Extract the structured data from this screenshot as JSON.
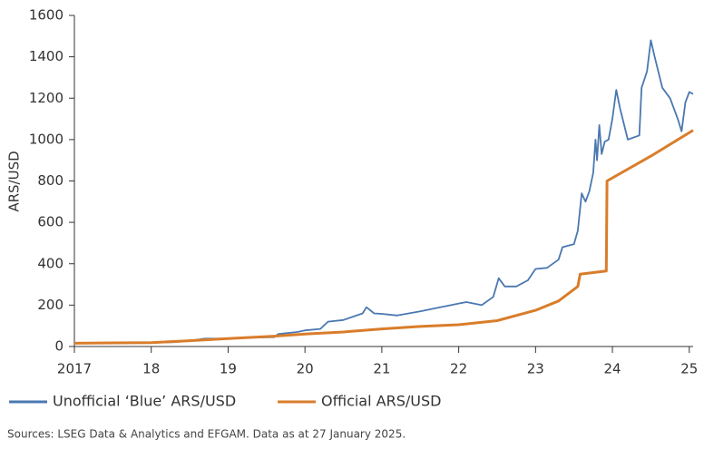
{
  "chart_data": {
    "type": "line",
    "y_label": "ARS/USD",
    "note": "Sources: LSEG Data & Analytics and EFGAM. Data as at 27 January 2025.",
    "xlim": [
      2017,
      2025.05
    ],
    "xticks": [
      2017,
      {
        "value": 2018,
        "label": "18"
      },
      {
        "value": 2019,
        "label": "19"
      },
      {
        "value": 2020,
        "label": "20"
      },
      {
        "value": 2021,
        "label": "21"
      },
      {
        "value": 2022,
        "label": "22"
      },
      {
        "value": 2023,
        "label": "23"
      },
      {
        "value": 2024,
        "label": "24"
      },
      {
        "value": 2025,
        "label": "25"
      }
    ],
    "ylim": [
      0,
      1600
    ],
    "yticks": [
      0,
      200,
      400,
      600,
      800,
      1000,
      1200,
      1400,
      1600
    ],
    "series": [
      {
        "name": "Unofficial ‘Blue’ ARS/USD",
        "color": "#4a78b0",
        "x": [
          2017.0,
          2017.5,
          2018.0,
          2018.3,
          2018.5,
          2018.7,
          2019.0,
          2019.3,
          2019.6,
          2019.65,
          2019.9,
          2020.0,
          2020.2,
          2020.3,
          2020.5,
          2020.75,
          2020.8,
          2020.9,
          2021.0,
          2021.2,
          2021.5,
          2021.7,
          2021.9,
          2022.0,
          2022.1,
          2022.3,
          2022.45,
          2022.52,
          2022.6,
          2022.75,
          2022.9,
          2023.0,
          2023.15,
          2023.3,
          2023.35,
          2023.5,
          2023.55,
          2023.6,
          2023.65,
          2023.7,
          2023.75,
          2023.78,
          2023.8,
          2023.83,
          2023.86,
          2023.9,
          2023.95,
          2024.0,
          2024.05,
          2024.1,
          2024.2,
          2024.35,
          2024.38,
          2024.45,
          2024.5,
          2024.55,
          2024.65,
          2024.75,
          2024.85,
          2024.9,
          2024.95,
          2025.0,
          2025.05
        ],
        "values": [
          16,
          17,
          19,
          21,
          28,
          38,
          38,
          43,
          45,
          60,
          70,
          78,
          85,
          120,
          128,
          160,
          190,
          160,
          158,
          150,
          170,
          185,
          200,
          208,
          215,
          200,
          240,
          330,
          290,
          290,
          320,
          375,
          380,
          420,
          480,
          495,
          560,
          740,
          700,
          750,
          840,
          1000,
          900,
          1070,
          930,
          990,
          1000,
          1100,
          1240,
          1150,
          1000,
          1020,
          1250,
          1330,
          1480,
          1400,
          1250,
          1200,
          1100,
          1040,
          1180,
          1230,
          1220
        ]
      },
      {
        "name": "Official ARS/USD",
        "color": "#d97d2b",
        "x": [
          2017.0,
          2018.0,
          2018.5,
          2019.0,
          2019.6,
          2020.0,
          2020.5,
          2021.0,
          2021.5,
          2022.0,
          2022.5,
          2023.0,
          2023.3,
          2023.55,
          2023.58,
          2023.92,
          2023.93,
          2024.5,
          2025.05
        ],
        "values": [
          16,
          19,
          28,
          38,
          50,
          60,
          70,
          85,
          97,
          105,
          125,
          175,
          220,
          290,
          350,
          365,
          800,
          920,
          1045
        ]
      }
    ]
  }
}
